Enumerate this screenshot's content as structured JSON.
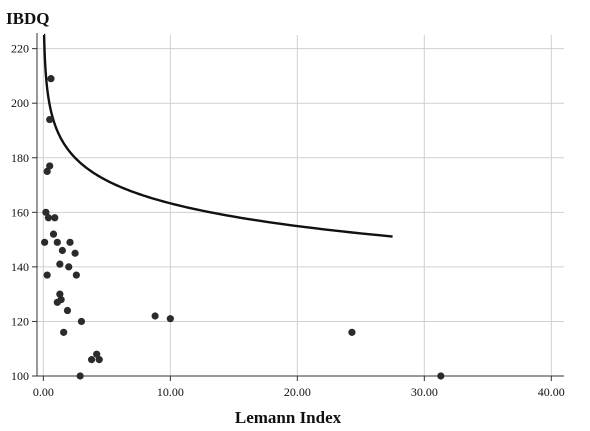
{
  "chart_data": {
    "type": "scatter",
    "title": "",
    "xlabel": "Lemann Index",
    "ylabel": "IBDQ",
    "xlim": [
      -0.5,
      41
    ],
    "ylim": [
      100,
      225
    ],
    "grid": true,
    "x_ticks": [
      0,
      10,
      20,
      30,
      40
    ],
    "x_tick_labels": [
      "0.00",
      "10.00",
      "20.00",
      "30.00",
      "40.00"
    ],
    "y_ticks": [
      100,
      120,
      140,
      160,
      180,
      200,
      220
    ],
    "y_tick_labels": [
      "100",
      "120",
      "140",
      "160",
      "180",
      "200",
      "220"
    ],
    "points": [
      {
        "x": 0.6,
        "y": 209
      },
      {
        "x": 0.5,
        "y": 194
      },
      {
        "x": 0.3,
        "y": 175
      },
      {
        "x": 0.5,
        "y": 177
      },
      {
        "x": 0.2,
        "y": 160
      },
      {
        "x": 0.4,
        "y": 158
      },
      {
        "x": 0.9,
        "y": 158
      },
      {
        "x": 0.1,
        "y": 149
      },
      {
        "x": 0.8,
        "y": 152
      },
      {
        "x": 1.1,
        "y": 149
      },
      {
        "x": 1.5,
        "y": 146
      },
      {
        "x": 2.1,
        "y": 149
      },
      {
        "x": 2.5,
        "y": 145
      },
      {
        "x": 1.3,
        "y": 141
      },
      {
        "x": 2.0,
        "y": 140
      },
      {
        "x": 0.3,
        "y": 137
      },
      {
        "x": 2.6,
        "y": 137
      },
      {
        "x": 1.3,
        "y": 130
      },
      {
        "x": 1.4,
        "y": 128
      },
      {
        "x": 1.1,
        "y": 127
      },
      {
        "x": 1.9,
        "y": 124
      },
      {
        "x": 3.0,
        "y": 120
      },
      {
        "x": 1.6,
        "y": 116
      },
      {
        "x": 4.2,
        "y": 108
      },
      {
        "x": 3.8,
        "y": 106
      },
      {
        "x": 4.4,
        "y": 106
      },
      {
        "x": 2.9,
        "y": 100
      },
      {
        "x": 8.8,
        "y": 122
      },
      {
        "x": 10.0,
        "y": 121
      },
      {
        "x": 24.3,
        "y": 116
      },
      {
        "x": 31.3,
        "y": 100
      }
    ],
    "fit_line": {
      "type": "logarithmic",
      "a": 191,
      "b": -27.7,
      "x_start": 0.05,
      "x_end": 27.5
    }
  }
}
